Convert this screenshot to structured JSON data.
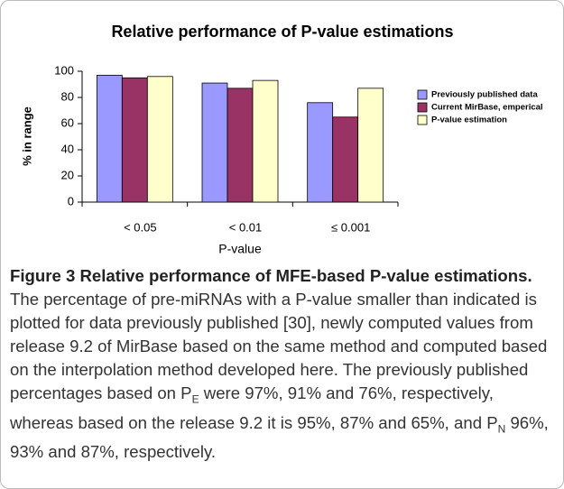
{
  "chart_data": {
    "type": "bar",
    "title": "Relative performance of P-value estimations",
    "ylabel": "% in range",
    "xlabel": "P-value",
    "categories": [
      "< 0.05",
      "< 0.01",
      "≤ 0.001"
    ],
    "series": [
      {
        "name": "Previously published data",
        "color": "#9999ff",
        "values": [
          97,
          91,
          76
        ]
      },
      {
        "name": "Current MirBase, emperical",
        "color": "#993366",
        "values": [
          95,
          87,
          65
        ]
      },
      {
        "name": "P-value estimation",
        "color": "#ffffcc",
        "values": [
          96,
          93,
          87
        ]
      }
    ],
    "ylim": [
      0,
      100
    ],
    "yticks": [
      0,
      20,
      40,
      60,
      80,
      100
    ],
    "grid": false,
    "legend": "right"
  },
  "caption": {
    "label": "Figure 3 Relative performance of MFE-based P-value estimations.",
    "text1": " The percentage of pre-miRNAs with a P-value smaller than indicated is plotted for data previously published [30], newly computed values from release 9.2 of MirBase based on the same method and computed based on the interpolation method developed here. The previously published percentages based on P",
    "sub1": "E",
    "text2": " were 97%, 91% and 76%, respectively, whereas based on the release 9.2 it is 95%, 87% and 65%, and P",
    "sub2": "N",
    "text3": " 96%, 93% and 87%, respectively."
  }
}
